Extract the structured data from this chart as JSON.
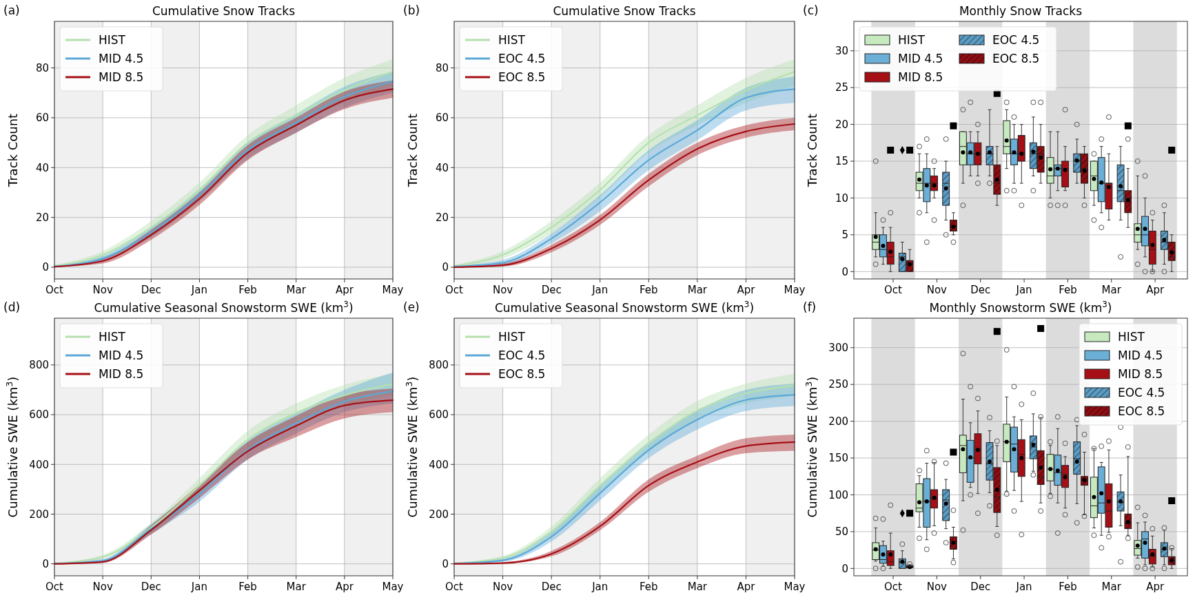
{
  "chart_data": [
    {
      "type": "line",
      "title": "Cumulative Snow Tracks",
      "ylabel": "Track Count",
      "annotations": [
        "(a)"
      ],
      "categories": [
        "Oct",
        "Nov",
        "Dec",
        "Jan",
        "Feb",
        "Mar",
        "Apr",
        "May"
      ],
      "ylim": [
        -4.7,
        98.7
      ],
      "yticks": [
        0,
        20,
        40,
        60,
        80
      ],
      "grid": true,
      "legend": "top left",
      "bands": [
        {
          "axis": "x",
          "from": "Oct",
          "to": "Nov",
          "color": "#f0f0f0"
        },
        {
          "axis": "x",
          "from": "Dec",
          "to": "Jan",
          "color": "#f0f0f0"
        },
        {
          "axis": "x",
          "from": "Feb",
          "to": "Mar",
          "color": "#f0f0f0"
        },
        {
          "axis": "x",
          "from": "Apr",
          "to": "May",
          "color": "#f0f0f0"
        }
      ],
      "series": [
        {
          "name": "HIST",
          "color": "#b5e0ae",
          "values": [
            0.5,
            5,
            16,
            31,
            50,
            61,
            71,
            78.5
          ],
          "lower": [
            0,
            3.5,
            13.5,
            28,
            46,
            57,
            66,
            73
          ],
          "upper": [
            1,
            6.5,
            18.5,
            34,
            53,
            65,
            76,
            83.5
          ]
        },
        {
          "name": "MID 4.5",
          "color": "#5aa8d8",
          "values": [
            0.3,
            3.5,
            14,
            29,
            47,
            58,
            68.5,
            74.5
          ],
          "lower": [
            0,
            2.5,
            12,
            26.5,
            43.5,
            54,
            64,
            70
          ],
          "upper": [
            0.8,
            4.5,
            16,
            31.5,
            50,
            61.5,
            72.5,
            78.5
          ]
        },
        {
          "name": "MID 8.5",
          "color": "#a50f15",
          "values": [
            0.2,
            2.5,
            13,
            27.5,
            46,
            57,
            67,
            71.5
          ],
          "lower": [
            0,
            1.5,
            11,
            25,
            43,
            54,
            63.5,
            68
          ],
          "upper": [
            0.5,
            3.5,
            15,
            30,
            49,
            60,
            70.5,
            75
          ]
        }
      ]
    },
    {
      "type": "line",
      "title": "Cumulative Snow Tracks",
      "ylabel": "Track Count",
      "annotations": [
        "(b)"
      ],
      "categories": [
        "Oct",
        "Nov",
        "Dec",
        "Jan",
        "Feb",
        "Mar",
        "Apr",
        "May"
      ],
      "ylim": [
        -4.7,
        98.7
      ],
      "yticks": [
        0,
        20,
        40,
        60,
        80
      ],
      "grid": true,
      "legend": "top left",
      "bands": [
        {
          "axis": "x",
          "from": "Oct",
          "to": "Nov",
          "color": "#f0f0f0"
        },
        {
          "axis": "x",
          "from": "Dec",
          "to": "Jan",
          "color": "#f0f0f0"
        },
        {
          "axis": "x",
          "from": "Feb",
          "to": "Mar",
          "color": "#f0f0f0"
        },
        {
          "axis": "x",
          "from": "Apr",
          "to": "May",
          "color": "#f0f0f0"
        }
      ],
      "series": [
        {
          "name": "HIST",
          "color": "#b5e0ae",
          "values": [
            0.5,
            5,
            16,
            31,
            50,
            61,
            71,
            78.5
          ],
          "lower": [
            0,
            3.5,
            13.5,
            28,
            46,
            57,
            66,
            73
          ],
          "upper": [
            1,
            6.5,
            18.5,
            34,
            53,
            65,
            76,
            83.5
          ]
        },
        {
          "name": "EOC 4.5",
          "color": "#5aa8d8",
          "values": [
            0.3,
            1.8,
            11.5,
            26,
            43,
            55,
            68,
            71.5
          ],
          "lower": [
            0,
            1,
            9.5,
            22.5,
            39,
            51,
            63,
            66
          ],
          "upper": [
            0.7,
            3,
            13.5,
            29,
            47,
            59,
            72,
            76.5
          ]
        },
        {
          "name": "EOC 8.5",
          "color": "#a50f15",
          "values": [
            0,
            0.8,
            7.5,
            19,
            35,
            47.5,
            54.5,
            57.5
          ],
          "lower": [
            0,
            0.3,
            6,
            17,
            32.5,
            45,
            52,
            55
          ],
          "upper": [
            0.3,
            1.5,
            9,
            21,
            37.5,
            50,
            57,
            60
          ]
        }
      ]
    },
    {
      "type": "box",
      "title": "Monthly Snow Tracks",
      "ylabel": "Track Count",
      "annotations": [
        "(c)"
      ],
      "categories": [
        "Oct",
        "Nov",
        "Dec",
        "Jan",
        "Feb",
        "Mar",
        "Apr"
      ],
      "ylim": [
        -1,
        34
      ],
      "yticks": [
        0,
        5,
        10,
        15,
        20,
        25,
        30
      ],
      "grid": "y",
      "legend": "top left",
      "bands": [
        {
          "axis": "x",
          "from": "Oct",
          "to": "Oct",
          "color": "#dcdcdc"
        },
        {
          "axis": "x",
          "from": "Dec",
          "to": "Dec",
          "color": "#dcdcdc"
        },
        {
          "axis": "x",
          "from": "Feb",
          "to": "Feb",
          "color": "#dcdcdc"
        },
        {
          "axis": "x",
          "from": "Apr",
          "to": "Apr",
          "color": "#dcdcdc"
        }
      ],
      "series": [
        {
          "name": "HIST",
          "color": "#c7e9c0",
          "boxes": [
            {
              "low": 2,
              "q1": 3,
              "median": 4,
              "q3": 5,
              "high": 8,
              "mean": 4.7,
              "outliers": [
                15,
                1
              ]
            },
            {
              "low": 10,
              "q1": 11,
              "median": 12,
              "q3": 13.5,
              "high": 16,
              "mean": 12.5,
              "outliers": [
                17,
                8
              ]
            },
            {
              "low": 12,
              "q1": 14.5,
              "median": 17,
              "q3": 19,
              "high": 19,
              "mean": 16.2,
              "outliers": [
                22,
                9
              ]
            },
            {
              "low": 14,
              "q1": 16,
              "median": 17,
              "q3": 20.5,
              "high": 22,
              "mean": 17.8,
              "outliers": [
                23,
                11
              ]
            },
            {
              "low": 10,
              "q1": 12,
              "median": 13,
              "q3": 15.5,
              "high": 19,
              "mean": 13.9,
              "outliers": [
                9
              ]
            },
            {
              "low": 9,
              "q1": 11,
              "median": 13,
              "q3": 15,
              "high": 15,
              "mean": 12.6,
              "outliers": [
                16,
                7
              ]
            },
            {
              "low": 3,
              "q1": 4,
              "median": 5,
              "q3": 6.5,
              "high": 13,
              "mean": 5.8,
              "outliers": [
                15,
                1
              ]
            }
          ]
        },
        {
          "name": "MID 4.5",
          "color": "#6baed6",
          "boxes": [
            {
              "low": 1,
              "q1": 2,
              "median": 3,
              "q3": 5,
              "high": 6,
              "mean": 3.5,
              "outliers": [
                7
              ]
            },
            {
              "low": 8,
              "q1": 9.5,
              "median": 12,
              "q3": 14,
              "high": 16,
              "mean": 11.7,
              "outliers": [
                18,
                4
              ]
            },
            {
              "low": 13,
              "q1": 14.5,
              "median": 16,
              "q3": 17.5,
              "high": 19,
              "mean": 16.2,
              "outliers": [
                23
              ]
            },
            {
              "low": 12,
              "q1": 14.5,
              "median": 16,
              "q3": 18,
              "high": 20,
              "mean": 16.2,
              "outliers": [
                21,
                11
              ]
            },
            {
              "low": 11,
              "q1": 13,
              "median": 14,
              "q3": 14.5,
              "high": 19,
              "mean": 14,
              "outliers": [
                9
              ]
            },
            {
              "low": 8,
              "q1": 9.5,
              "median": 12,
              "q3": 15.5,
              "high": 17,
              "mean": 12.1,
              "outliers": [
                18,
                6
              ]
            },
            {
              "low": 2,
              "q1": 3.5,
              "median": 5,
              "q3": 7.5,
              "high": 10,
              "mean": 5.8,
              "outliers": [
                13,
                0
              ]
            }
          ]
        },
        {
          "name": "MID 8.5",
          "color": "#a50f15",
          "boxes": [
            {
              "low": 0,
              "q1": 1,
              "median": 2,
              "q3": 4,
              "high": 6,
              "mean": 2.7,
              "outliers": [
                8
              ]
            },
            {
              "low": 10,
              "q1": 11,
              "median": 12,
              "q3": 13,
              "high": 14,
              "mean": 11.7,
              "outliers": [
                15,
                7
              ]
            },
            {
              "low": 13,
              "q1": 14.5,
              "median": 16,
              "q3": 17.5,
              "high": 19,
              "mean": 16,
              "outliers": [
                20,
                12
              ]
            },
            {
              "low": 12,
              "q1": 15,
              "median": 16,
              "q3": 18.5,
              "high": 20,
              "mean": 16,
              "outliers": [
                9
              ]
            },
            {
              "low": 11,
              "q1": 11.5,
              "median": 14,
              "q3": 15,
              "high": 17,
              "mean": 13.8,
              "outliers": [
                22,
                9
              ]
            },
            {
              "low": 7,
              "q1": 8.5,
              "median": 12,
              "q3": 12,
              "high": 16,
              "mean": 11.5,
              "outliers": [
                21
              ]
            },
            {
              "low": 0,
              "q1": 1,
              "median": 3,
              "q3": 5.5,
              "high": 7,
              "mean": 3.6,
              "outliers": [
                8,
                0
              ]
            }
          ]
        },
        {
          "type": "scatter",
          "marker": "square",
          "color": "#000000",
          "x": [
            "Oct"
          ],
          "values": [
            16.5
          ]
        },
        {
          "name": "EOC 4.5",
          "color": "#5b9cc4",
          "boxes": [
            {
              "low": 0,
              "q1": 0,
              "median": 2,
              "q3": 2.5,
              "high": 4,
              "mean": 1.7
            },
            {
              "low": 7,
              "q1": 9,
              "median": 12,
              "q3": 13.5,
              "high": 15,
              "mean": 11.3,
              "outliers": [
                18,
                5
              ]
            },
            {
              "low": 13,
              "q1": 14.5,
              "median": 16,
              "q3": 17,
              "high": 22,
              "mean": 16.2,
              "outliers": [
                12
              ]
            },
            {
              "low": 13,
              "q1": 14,
              "median": 16,
              "q3": 17.5,
              "high": 21,
              "mean": 16.3,
              "outliers": [
                23,
                11
              ]
            },
            {
              "low": 12,
              "q1": 13.5,
              "median": 15,
              "q3": 16,
              "high": 18,
              "mean": 15.1,
              "outliers": [
                20
              ]
            },
            {
              "low": 7,
              "q1": 9.5,
              "median": 11,
              "q3": 14.5,
              "high": 17,
              "mean": 11.6,
              "outliers": [
                2
              ]
            },
            {
              "low": 1,
              "q1": 3,
              "median": 4,
              "q3": 5.5,
              "high": 8,
              "mean": 4.3,
              "outliers": [
                9,
                0
              ]
            }
          ]
        },
        {
          "type": "scatter",
          "marker": "diamond",
          "color": "#000000",
          "x": [
            "Oct"
          ],
          "values": [
            16.5
          ]
        },
        {
          "name": "EOC 8.5",
          "color": "#8e0d12",
          "boxes": [
            {
              "low": 0,
              "q1": 0,
              "median": 1,
              "q3": 1.5,
              "high": 3,
              "mean": 1
            },
            {
              "low": 5,
              "q1": 5.5,
              "median": 6,
              "q3": 7,
              "high": 8,
              "mean": 6.1,
              "outliers": [
                4
              ]
            },
            {
              "low": 9,
              "q1": 10.5,
              "median": 12,
              "q3": 14.5,
              "high": 17,
              "mean": 12.5
            },
            {
              "low": 12,
              "q1": 13.5,
              "median": 16,
              "q3": 17,
              "high": 20,
              "mean": 15.5,
              "outliers": [
                23
              ]
            },
            {
              "low": 10,
              "q1": 12,
              "median": 14,
              "q3": 16,
              "high": 17,
              "mean": 13.7,
              "outliers": [
                9
              ]
            },
            {
              "low": 6,
              "q1": 8,
              "median": 10,
              "q3": 11,
              "high": 14,
              "mean": 9.7,
              "outliers": [
                18
              ]
            },
            {
              "low": 0,
              "q1": 1.5,
              "median": 2,
              "q3": 4,
              "high": 5,
              "mean": 2.6
            }
          ]
        },
        {
          "type": "scatter",
          "marker": "square",
          "color": "#000000",
          "x": [
            "Oct",
            "Nov",
            "Dec",
            "Mar",
            "Apr"
          ],
          "values": [
            16.5,
            19.8,
            24.2,
            19.8,
            16.5
          ]
        }
      ]
    },
    {
      "type": "line",
      "title": "Cumulative Seasonal Snowstorm SWE (km$^{3}$)",
      "ylabel": "Cumulative SWE (km$^{3}$)",
      "annotations": [
        "(d)"
      ],
      "categories": [
        "Oct",
        "Nov",
        "Dec",
        "Jan",
        "Feb",
        "Mar",
        "Apr",
        "May"
      ],
      "ylim": [
        -48,
        988
      ],
      "yticks": [
        0,
        200,
        400,
        600,
        800
      ],
      "grid": true,
      "legend": "top left",
      "bands": [
        {
          "axis": "x",
          "from": "Oct",
          "to": "Nov",
          "color": "#f0f0f0"
        },
        {
          "axis": "x",
          "from": "Dec",
          "to": "Jan",
          "color": "#f0f0f0"
        },
        {
          "axis": "x",
          "from": "Feb",
          "to": "Mar",
          "color": "#f0f0f0"
        },
        {
          "axis": "x",
          "from": "Apr",
          "to": "May",
          "color": "#f0f0f0"
        }
      ],
      "series": [
        {
          "name": "HIST",
          "color": "#b5e0ae",
          "values": [
            2,
            28,
            146,
            315,
            500,
            607,
            678,
            724
          ],
          "lower": [
            0,
            20,
            125,
            285,
            465,
            570,
            635,
            680
          ],
          "upper": [
            5,
            36,
            165,
            345,
            535,
            645,
            720,
            765
          ]
        },
        {
          "name": "MID 4.5",
          "color": "#5aa8d8",
          "values": [
            1,
            13,
            141,
            280,
            458,
            566,
            653,
            694
          ],
          "lower": [
            0,
            8,
            120,
            250,
            420,
            525,
            610,
            645
          ],
          "upper": [
            3,
            20,
            160,
            310,
            495,
            605,
            700,
            770
          ]
        },
        {
          "name": "MID 8.5",
          "color": "#a50f15",
          "values": [
            0,
            8,
            136,
            295,
            453,
            555,
            637,
            658
          ],
          "lower": [
            0,
            4,
            118,
            265,
            420,
            510,
            585,
            610
          ],
          "upper": [
            2,
            13,
            155,
            320,
            490,
            595,
            680,
            705
          ]
        }
      ]
    },
    {
      "type": "line",
      "title": "Cumulative Seasonal Snowstorm SWE (km$^{3}$)",
      "ylabel": "Cumulative SWE (km$^{3}$)",
      "annotations": [
        "(e)"
      ],
      "categories": [
        "Oct",
        "Nov",
        "Dec",
        "Jan",
        "Feb",
        "Mar",
        "Apr",
        "May"
      ],
      "ylim": [
        -48,
        988
      ],
      "yticks": [
        0,
        200,
        400,
        600,
        800
      ],
      "grid": true,
      "legend": "top left",
      "bands": [
        {
          "axis": "x",
          "from": "Oct",
          "to": "Nov",
          "color": "#f0f0f0"
        },
        {
          "axis": "x",
          "from": "Dec",
          "to": "Jan",
          "color": "#f0f0f0"
        },
        {
          "axis": "x",
          "from": "Feb",
          "to": "Mar",
          "color": "#f0f0f0"
        },
        {
          "axis": "x",
          "from": "Apr",
          "to": "May",
          "color": "#f0f0f0"
        }
      ],
      "series": [
        {
          "name": "HIST",
          "color": "#b5e0ae",
          "values": [
            2,
            24,
            130,
            315,
            485,
            617,
            686,
            717
          ],
          "lower": [
            0,
            16,
            110,
            285,
            450,
            580,
            645,
            675
          ],
          "upper": [
            5,
            32,
            150,
            345,
            520,
            655,
            725,
            765
          ]
        },
        {
          "name": "EOC 4.5",
          "color": "#5aa8d8",
          "values": [
            1,
            14,
            109,
            284,
            458,
            580,
            659,
            680
          ],
          "lower": [
            0,
            8,
            90,
            255,
            425,
            540,
            615,
            635
          ],
          "upper": [
            3,
            20,
            128,
            313,
            490,
            615,
            700,
            725
          ]
        },
        {
          "name": "EOC 8.5",
          "color": "#a50f15",
          "values": [
            0,
            3,
            40,
            151,
            315,
            410,
            474,
            490
          ],
          "lower": [
            0,
            1,
            30,
            135,
            290,
            385,
            445,
            455
          ],
          "upper": [
            1,
            6,
            52,
            168,
            340,
            435,
            505,
            520
          ]
        }
      ]
    },
    {
      "type": "box",
      "title": "Monthly Snowstorm SWE (km$^{3}$)",
      "ylabel": "Cumulative SWE (km$^{3}$)",
      "annotations": [
        "(f)"
      ],
      "categories": [
        "Oct",
        "Nov",
        "Dec",
        "Jan",
        "Feb",
        "Mar",
        "Apr"
      ],
      "ylim": [
        -10,
        340
      ],
      "yticks": [
        0,
        50,
        100,
        150,
        200,
        250,
        300
      ],
      "grid": "y",
      "legend": "top right",
      "bands": [
        {
          "axis": "x",
          "from": "Oct",
          "to": "Oct",
          "color": "#dcdcdc"
        },
        {
          "axis": "x",
          "from": "Dec",
          "to": "Dec",
          "color": "#dcdcdc"
        },
        {
          "axis": "x",
          "from": "Feb",
          "to": "Feb",
          "color": "#dcdcdc"
        },
        {
          "axis": "x",
          "from": "Apr",
          "to": "Apr",
          "color": "#dcdcdc"
        }
      ],
      "series": [
        {
          "name": "HIST",
          "color": "#c7e9c0",
          "boxes": [
            {
              "low": 10,
              "q1": 12,
              "median": 25,
              "q3": 35,
              "high": 55,
              "mean": 26,
              "outliers": [
                68,
                0
              ]
            },
            {
              "low": 56,
              "q1": 77,
              "median": 82,
              "q3": 115,
              "high": 126,
              "mean": 90,
              "outliers": [
                133,
                41
              ]
            },
            {
              "low": 92,
              "q1": 130,
              "median": 167,
              "q3": 181,
              "high": 230,
              "mean": 162,
              "outliers": [
                292,
                52
              ]
            },
            {
              "low": 105,
              "q1": 145,
              "median": 172,
              "q3": 196,
              "high": 233,
              "mean": 172,
              "outliers": [
                297,
                101
              ]
            },
            {
              "low": 102,
              "q1": 119,
              "median": 135,
              "q3": 155,
              "high": 167,
              "mean": 135,
              "outliers": [
                172,
                98
              ]
            },
            {
              "low": 55,
              "q1": 69,
              "median": 85,
              "q3": 124,
              "high": 163,
              "mean": 97,
              "outliers": [
                163,
                45
              ]
            },
            {
              "low": 14,
              "q1": 18,
              "median": 27,
              "q3": 38,
              "high": 62,
              "mean": 31,
              "outliers": [
                83,
                2
              ]
            }
          ]
        },
        {
          "name": "MID 4.5",
          "color": "#6baed6",
          "boxes": [
            {
              "low": 3,
              "q1": 7,
              "median": 12,
              "q3": 31,
              "high": 37,
              "mean": 19,
              "outliers": [
                67,
                0
              ]
            },
            {
              "low": 39,
              "q1": 56,
              "median": 91,
              "q3": 122,
              "high": 143,
              "mean": 91,
              "outliers": [
                160,
                26
              ]
            },
            {
              "low": 110,
              "q1": 117,
              "median": 150,
              "q3": 174,
              "high": 198,
              "mean": 151,
              "outliers": [
                247,
                100
              ]
            },
            {
              "low": 106,
              "q1": 131,
              "median": 169,
              "q3": 192,
              "high": 206,
              "mean": 162,
              "outliers": [
                247,
                78
              ]
            },
            {
              "low": 89,
              "q1": 113,
              "median": 130,
              "q3": 154,
              "high": 190,
              "mean": 133,
              "outliers": [
                206,
                48
              ]
            },
            {
              "low": 45,
              "q1": 75,
              "median": 89,
              "q3": 138,
              "high": 144,
              "mean": 102,
              "outliers": [
                166,
                28
              ]
            },
            {
              "low": 5,
              "q1": 14,
              "median": 40,
              "q3": 50,
              "high": 63,
              "mean": 35,
              "outliers": [
                72,
                0
              ]
            }
          ]
        },
        {
          "name": "MID 8.5",
          "color": "#a50f15",
          "boxes": [
            {
              "low": 0,
              "q1": 4,
              "median": 9,
              "q3": 24,
              "high": 48,
              "mean": 19,
              "outliers": [
                86
              ]
            },
            {
              "low": 58,
              "q1": 82,
              "median": 95,
              "q3": 107,
              "high": 144,
              "mean": 96,
              "outliers": [
                145,
                48
              ]
            },
            {
              "low": 102,
              "q1": 142,
              "median": 162,
              "q3": 183,
              "high": 214,
              "mean": 161,
              "outliers": [
                231,
                75
              ]
            },
            {
              "low": 91,
              "q1": 125,
              "median": 155,
              "q3": 175,
              "high": 202,
              "mean": 150,
              "outliers": [
                223,
                46
              ]
            },
            {
              "low": 82,
              "q1": 110,
              "median": 128,
              "q3": 140,
              "high": 152,
              "mean": 124,
              "outliers": [
                170,
                73
              ]
            },
            {
              "low": 49,
              "q1": 56,
              "median": 78,
              "q3": 115,
              "high": 161,
              "mean": 91,
              "outliers": [
                173,
                43
              ]
            },
            {
              "low": 2,
              "q1": 6,
              "median": 17,
              "q3": 26,
              "high": 44,
              "mean": 19,
              "outliers": [
                54,
                0
              ]
            }
          ]
        },
        {
          "name": "EOC 4.5",
          "color": "#5b9cc4",
          "boxes": [
            {
              "low": 0,
              "q1": 0,
              "median": 9,
              "q3": 13,
              "high": 24,
              "mean": 9,
              "outliers": [
                33
              ]
            },
            {
              "low": 54,
              "q1": 65,
              "median": 93,
              "q3": 107,
              "high": 121,
              "mean": 88,
              "outliers": [
                143,
                35
              ]
            },
            {
              "low": 103,
              "q1": 120,
              "median": 142,
              "q3": 171,
              "high": 187,
              "mean": 145,
              "outliers": [
                205,
                85
              ]
            },
            {
              "low": 132,
              "q1": 149,
              "median": 165,
              "q3": 180,
              "high": 210,
              "mean": 168,
              "outliers": [
                238,
                127
              ]
            },
            {
              "low": 88,
              "q1": 128,
              "median": 149,
              "q3": 172,
              "high": 194,
              "mean": 145,
              "outliers": [
                202,
                62
              ]
            },
            {
              "low": 58,
              "q1": 78,
              "median": 90,
              "q3": 104,
              "high": 127,
              "mean": 91,
              "outliers": [
                192,
                9
              ]
            },
            {
              "low": 5,
              "q1": 16,
              "median": 26,
              "q3": 35,
              "high": 52,
              "mean": 27,
              "outliers": [
                55,
                0
              ]
            }
          ]
        },
        {
          "type": "scatter",
          "marker": "diamond",
          "color": "#000000",
          "x": [
            "Oct"
          ],
          "values": [
            75
          ]
        },
        {
          "name": "EOC 8.5",
          "color": "#8e0d12",
          "boxes": [
            {
              "low": 0,
              "q1": 1,
              "median": 2,
              "q3": 4,
              "high": 5,
              "mean": 2,
              "outliers": [
                6
              ]
            },
            {
              "low": 13,
              "q1": 26,
              "median": 35,
              "q3": 43,
              "high": 56,
              "mean": 35,
              "outliers": [
                79,
                8
              ]
            },
            {
              "low": 57,
              "q1": 76,
              "median": 97,
              "q3": 137,
              "high": 167,
              "mean": 107,
              "outliers": [
                173,
                45
              ]
            },
            {
              "low": 89,
              "q1": 114,
              "median": 124,
              "q3": 160,
              "high": 205,
              "mean": 137,
              "outliers": [
                206,
                78
              ]
            },
            {
              "low": 73,
              "q1": 113,
              "median": 120,
              "q3": 125,
              "high": 158,
              "mean": 120,
              "outliers": [
                182,
                71
              ]
            },
            {
              "low": 45,
              "q1": 54,
              "median": 63,
              "q3": 74,
              "high": 152,
              "mean": 63,
              "outliers": [
                165,
                41
              ]
            },
            {
              "low": 0,
              "q1": 5,
              "median": 10,
              "q3": 16,
              "high": 27,
              "mean": 11,
              "outliers": [
                28
              ]
            }
          ]
        },
        {
          "type": "scatter",
          "marker": "square",
          "color": "#000000",
          "x": [
            "Oct",
            "Nov",
            "Dec",
            "Jan",
            "Apr"
          ],
          "values": [
            75,
            158,
            322,
            326,
            92
          ]
        }
      ]
    }
  ]
}
